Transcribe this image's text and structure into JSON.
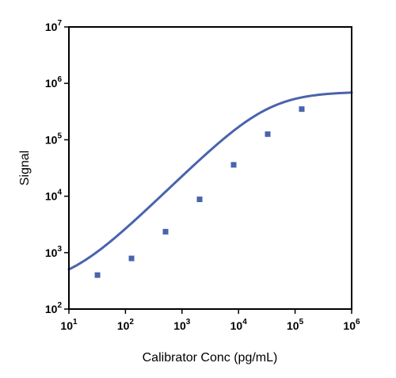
{
  "chart_data": {
    "type": "scatter",
    "xlabel": "Calibrator Conc (pg/mL)",
    "ylabel": "Signal",
    "x_scale": "log",
    "y_scale": "log",
    "xlim": [
      10,
      1000000
    ],
    "ylim": [
      100,
      10000000
    ],
    "grid": false,
    "legend": "none",
    "x_ticks": [
      {
        "base": "10",
        "exp": "1",
        "value": 10
      },
      {
        "base": "10",
        "exp": "2",
        "value": 100
      },
      {
        "base": "10",
        "exp": "3",
        "value": 1000
      },
      {
        "base": "10",
        "exp": "4",
        "value": 10000
      },
      {
        "base": "10",
        "exp": "5",
        "value": 100000
      },
      {
        "base": "10",
        "exp": "6",
        "value": 1000000
      }
    ],
    "y_ticks": [
      {
        "base": "10",
        "exp": "2",
        "value": 100
      },
      {
        "base": "10",
        "exp": "3",
        "value": 1000
      },
      {
        "base": "10",
        "exp": "4",
        "value": 10000
      },
      {
        "base": "10",
        "exp": "5",
        "value": 100000
      },
      {
        "base": "10",
        "exp": "6",
        "value": 1000000
      },
      {
        "base": "10",
        "exp": "7",
        "value": 10000000
      }
    ],
    "series": [
      {
        "marker": "square",
        "color": "#4a63ad",
        "x": [
          32,
          128,
          512,
          2048,
          8192,
          32768,
          131072
        ],
        "y": [
          400,
          790,
          2350,
          8800,
          36000,
          126000,
          350000
        ],
        "fit_curve": {
          "model": "4PL",
          "bottom": 252,
          "top": 710000,
          "ec50": 33000,
          "hill": 0.98
        }
      }
    ]
  }
}
